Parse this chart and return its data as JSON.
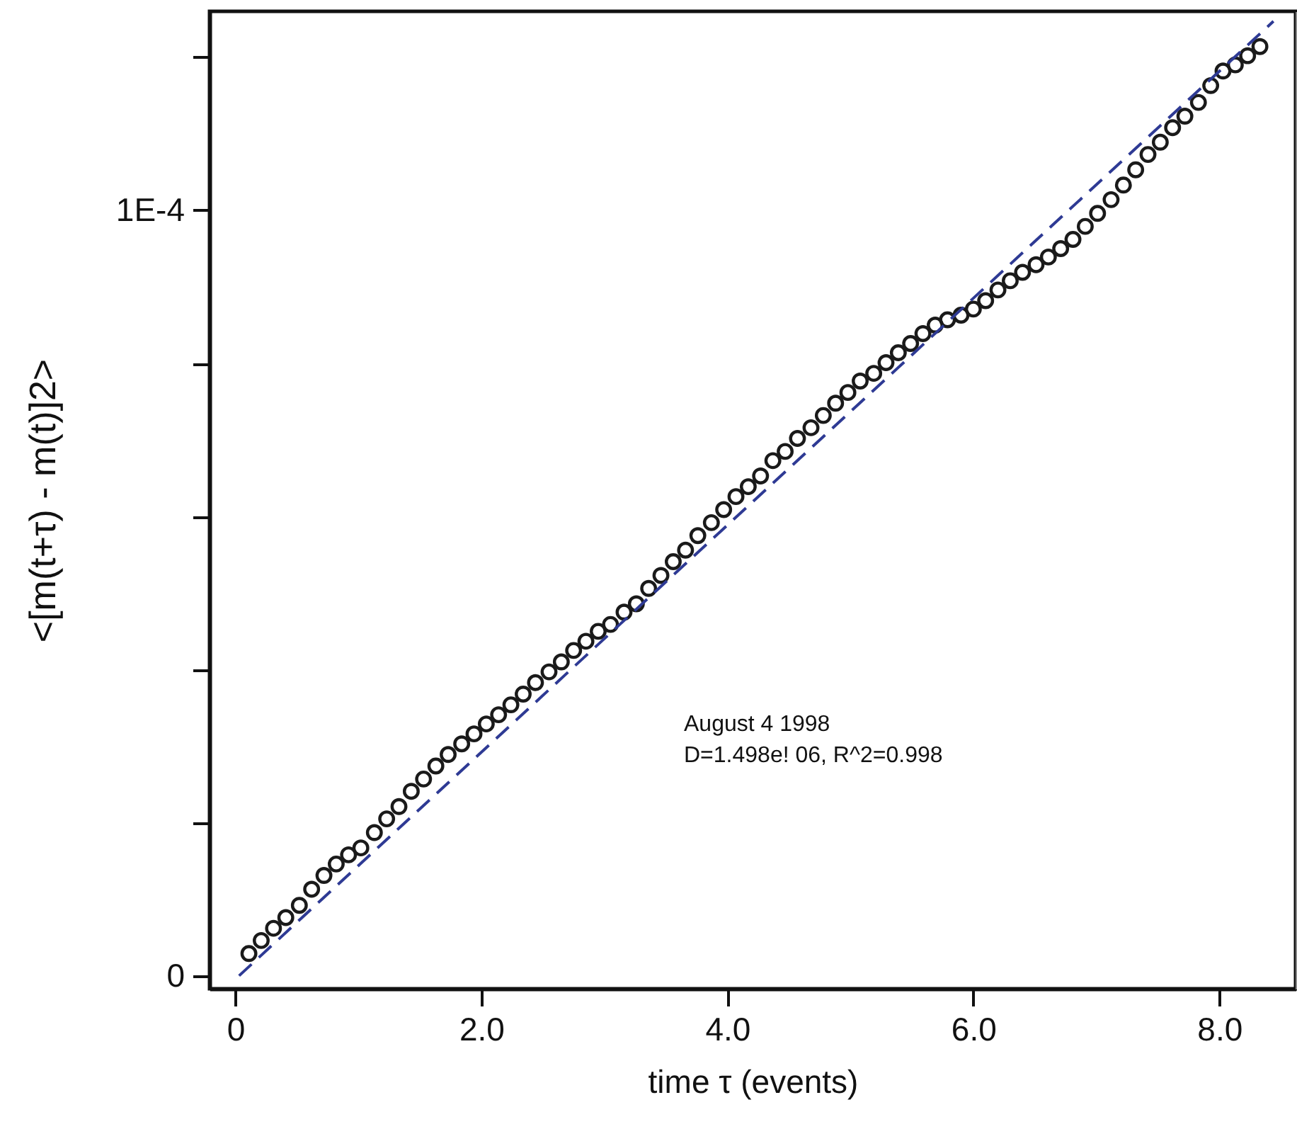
{
  "chart_data": {
    "type": "scatter",
    "xlabel": "time τ (events)",
    "ylabel": "<[m(t+τ) - m(t)]2>",
    "annotations": [
      "August 4 1998",
      "D=1.498e! 06, R^2=0.998"
    ],
    "xlim": [
      -0.21,
      8.62
    ],
    "ylim": [
      -1.7e-06,
      0.000126
    ],
    "xticks": [
      0,
      {
        "value": 2,
        "label": "2.0"
      },
      {
        "value": 4,
        "label": "4.0"
      },
      {
        "value": 6,
        "label": "6.0"
      },
      {
        "value": 8,
        "label": "8.0"
      }
    ],
    "yticks": [
      0,
      {
        "value": 2e-05,
        "label": null
      },
      {
        "value": 4e-05,
        "label": null
      },
      {
        "value": 6e-05,
        "label": null
      },
      {
        "value": 8e-05,
        "label": null
      },
      {
        "value": 0.0001,
        "label": "1E-4"
      },
      {
        "value": 0.00012,
        "label": null
      }
    ],
    "series": [
      {
        "marker": "circle",
        "color": "#1a1a1a",
        "x": [
          0.11,
          0.21,
          0.31,
          0.41,
          0.52,
          0.62,
          0.72,
          0.82,
          0.92,
          1.02,
          1.13,
          1.23,
          1.33,
          1.43,
          1.53,
          1.63,
          1.73,
          1.84,
          1.94,
          2.04,
          2.14,
          2.24,
          2.34,
          2.44,
          2.55,
          2.65,
          2.75,
          2.85,
          2.95,
          3.05,
          3.16,
          3.26,
          3.36,
          3.46,
          3.56,
          3.66,
          3.76,
          3.87,
          3.97,
          4.07,
          4.17,
          4.27,
          4.37,
          4.47,
          4.57,
          4.68,
          4.78,
          4.88,
          4.98,
          5.08,
          5.19,
          5.29,
          5.39,
          5.49,
          5.59,
          5.69,
          5.79,
          5.9,
          6.0,
          6.1,
          6.2,
          6.3,
          6.4,
          6.51,
          6.61,
          6.71,
          6.81,
          6.91,
          7.01,
          7.12,
          7.22,
          7.32,
          7.42,
          7.52,
          7.62,
          7.72,
          7.83,
          7.93,
          8.03,
          8.13,
          8.23,
          8.33
        ],
        "values": [
          2.9e-06,
          4.6e-06,
          6.2e-06,
          7.6e-06,
          9.2e-06,
          1.13e-05,
          1.31e-05,
          1.46e-05,
          1.58e-05,
          1.67e-05,
          1.87e-05,
          2.05e-05,
          2.21e-05,
          2.41e-05,
          2.57e-05,
          2.74e-05,
          2.89e-05,
          3.03e-05,
          3.16e-05,
          3.29e-05,
          3.41e-05,
          3.54e-05,
          3.68e-05,
          3.83e-05,
          3.97e-05,
          4.1e-05,
          4.25e-05,
          4.37e-05,
          4.5e-05,
          4.59e-05,
          4.75e-05,
          4.86e-05,
          5.06e-05,
          5.23e-05,
          5.41e-05,
          5.56e-05,
          5.75e-05,
          5.92e-05,
          6.09e-05,
          6.26e-05,
          6.39e-05,
          6.53e-05,
          6.73e-05,
          6.85e-05,
          7.02e-05,
          7.16e-05,
          7.32e-05,
          7.48e-05,
          7.62e-05,
          7.77e-05,
          7.87e-05,
          8.01e-05,
          8.14e-05,
          8.26e-05,
          8.39e-05,
          8.5e-05,
          8.57e-05,
          8.63e-05,
          8.71e-05,
          8.82e-05,
          8.96e-05,
          9.08e-05,
          9.19e-05,
          9.29e-05,
          9.39e-05,
          9.5e-05,
          9.62e-05,
          9.79e-05,
          9.96e-05,
          0.0001014,
          0.0001033,
          0.0001053,
          0.0001073,
          0.0001089,
          0.0001108,
          0.0001123,
          0.0001141,
          0.0001163,
          0.0001182,
          0.000119,
          0.0001202,
          0.0001214
        ]
      },
      {
        "type": "line",
        "line_style": "dashed",
        "color": "#2e3a94",
        "x": [
          0.03,
          8.44
        ],
        "values": [
          0,
          0.0001247
        ]
      }
    ]
  }
}
